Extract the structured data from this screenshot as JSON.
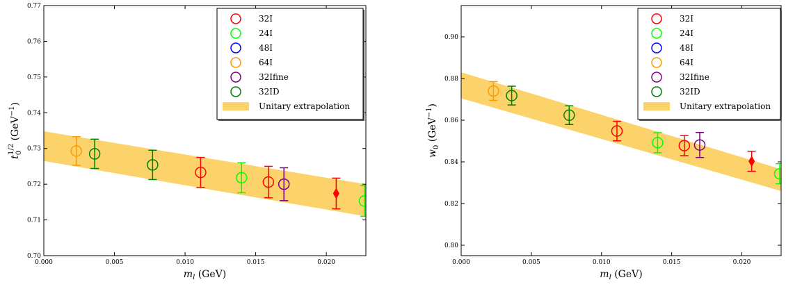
{
  "chart_data": [
    {
      "type": "scatter",
      "title": "",
      "xlabel": "m_l (GeV)",
      "ylabel": "t_0^{1/2} (GeV^-1)",
      "xlim": [
        0.0,
        0.0228
      ],
      "ylim": [
        0.7,
        0.77
      ],
      "xticks": [
        0.0,
        0.005,
        0.01,
        0.015,
        0.02
      ],
      "xtick_labels": [
        "0.000",
        "0.005",
        "0.010",
        "0.015",
        "0.020"
      ],
      "yticks": [
        0.7,
        0.71,
        0.72,
        0.73,
        0.74,
        0.75,
        0.76,
        0.77
      ],
      "ytick_labels": [
        "0.70",
        "0.71",
        "0.72",
        "0.73",
        "0.74",
        "0.75",
        "0.76",
        "0.77"
      ],
      "legend_position": "top-right",
      "band": {
        "name": "Unitary extrapolation",
        "color": "#fbd36a",
        "x": [
          0.0,
          0.0228
        ],
        "lower": [
          0.7265,
          0.711
        ],
        "upper": [
          0.7348,
          0.72
        ]
      },
      "series": [
        {
          "name": "32I",
          "color": "#ff0000",
          "points": [
            {
              "x": 0.0111,
              "y": 0.7233,
              "err": 0.0042,
              "marker": "circle"
            },
            {
              "x": 0.0159,
              "y": 0.7206,
              "err": 0.0044,
              "marker": "circle"
            },
            {
              "x": 0.0207,
              "y": 0.7174,
              "err": 0.0043,
              "marker": "diamond"
            }
          ]
        },
        {
          "name": "24I",
          "color": "#00ff00",
          "points": [
            {
              "x": 0.014,
              "y": 0.7218,
              "err": 0.0042,
              "marker": "circle"
            },
            {
              "x": 0.0227,
              "y": 0.7153,
              "err": 0.0043,
              "marker": "circle"
            }
          ]
        },
        {
          "name": "48I",
          "color": "#0000ff",
          "points": []
        },
        {
          "name": "64I",
          "color": "#ff9900",
          "points": [
            {
              "x": 0.0023,
              "y": 0.7293,
              "err": 0.004,
              "marker": "circle"
            }
          ]
        },
        {
          "name": "32Ifine",
          "color": "#800080",
          "points": [
            {
              "x": 0.017,
              "y": 0.72,
              "err": 0.0046,
              "marker": "circle"
            }
          ]
        },
        {
          "name": "32ID",
          "color": "#008000",
          "points": [
            {
              "x": 0.0036,
              "y": 0.7285,
              "err": 0.0041,
              "marker": "circle"
            },
            {
              "x": 0.0077,
              "y": 0.7254,
              "err": 0.0041,
              "marker": "circle"
            }
          ]
        }
      ]
    },
    {
      "type": "scatter",
      "title": "",
      "xlabel": "m_l (GeV)",
      "ylabel": "w_0 (GeV^-1)",
      "xlim": [
        0.0,
        0.0228
      ],
      "ylim": [
        0.795,
        0.915
      ],
      "xticks": [
        0.0,
        0.005,
        0.01,
        0.015,
        0.02
      ],
      "xtick_labels": [
        "0.000",
        "0.005",
        "0.010",
        "0.015",
        "0.020"
      ],
      "yticks": [
        0.8,
        0.82,
        0.84,
        0.86,
        0.88,
        0.9
      ],
      "ytick_labels": [
        "0.80",
        "0.82",
        "0.84",
        "0.86",
        "0.88",
        "0.90"
      ],
      "legend_position": "top-right",
      "band": {
        "name": "Unitary extrapolation",
        "color": "#fbd36a",
        "x": [
          0.0,
          0.0228
        ],
        "lower": [
          0.8705,
          0.826
        ],
        "upper": [
          0.883,
          0.8365
        ]
      },
      "series": [
        {
          "name": "32I",
          "color": "#ff0000",
          "points": [
            {
              "x": 0.0111,
              "y": 0.8548,
              "err": 0.0047,
              "marker": "circle"
            },
            {
              "x": 0.0159,
              "y": 0.8478,
              "err": 0.0048,
              "marker": "circle"
            },
            {
              "x": 0.0207,
              "y": 0.8403,
              "err": 0.0048,
              "marker": "diamond"
            }
          ]
        },
        {
          "name": "24I",
          "color": "#00ff00",
          "points": [
            {
              "x": 0.014,
              "y": 0.8492,
              "err": 0.0048,
              "marker": "circle"
            },
            {
              "x": 0.0227,
              "y": 0.8343,
              "err": 0.0048,
              "marker": "circle"
            }
          ]
        },
        {
          "name": "48I",
          "color": "#0000ff",
          "points": []
        },
        {
          "name": "64I",
          "color": "#ff9900",
          "points": [
            {
              "x": 0.0023,
              "y": 0.874,
              "err": 0.0045,
              "marker": "circle"
            }
          ]
        },
        {
          "name": "32Ifine",
          "color": "#800080",
          "points": [
            {
              "x": 0.017,
              "y": 0.8481,
              "err": 0.006,
              "marker": "circle"
            }
          ]
        },
        {
          "name": "32ID",
          "color": "#008000",
          "points": [
            {
              "x": 0.0036,
              "y": 0.8718,
              "err": 0.0045,
              "marker": "circle"
            },
            {
              "x": 0.0077,
              "y": 0.8624,
              "err": 0.0045,
              "marker": "circle"
            }
          ]
        }
      ]
    }
  ]
}
